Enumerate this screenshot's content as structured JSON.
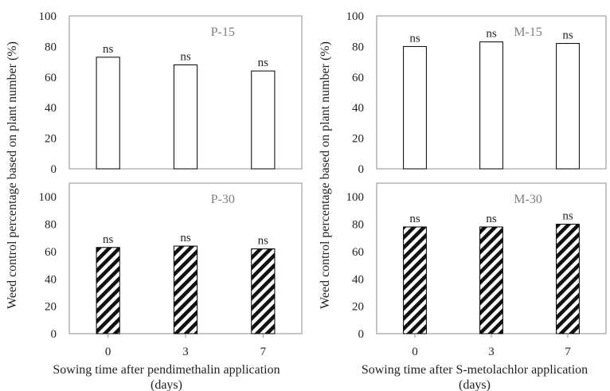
{
  "figure": {
    "ylabel": "Weed control percentage based on plant number (%)",
    "groups": [
      {
        "xlabel_line1": "Sowing time after pendimethalin application",
        "xlabel_line2": "(days)"
      },
      {
        "xlabel_line1": "Sowing time after S-metolachlor application",
        "xlabel_line2": "(days)"
      }
    ]
  },
  "chart_data": [
    {
      "type": "bar",
      "title": "P-15",
      "categories": [
        "0",
        "3",
        "7"
      ],
      "values": [
        73,
        68,
        64
      ],
      "labels": [
        "ns",
        "ns",
        "ns"
      ],
      "ylim": [
        0,
        100
      ],
      "yticks": [
        0,
        20,
        40,
        60,
        80,
        100
      ],
      "fill": "white",
      "ylabel": "Weed control percentage based on plant number (%)"
    },
    {
      "type": "bar",
      "title": "P-30",
      "categories": [
        "0",
        "3",
        "7"
      ],
      "values": [
        63,
        64,
        62
      ],
      "labels": [
        "ns",
        "ns",
        "ns"
      ],
      "ylim": [
        0,
        100
      ],
      "yticks": [
        0,
        20,
        40,
        60,
        80,
        100
      ],
      "fill": "diagonal-stripes",
      "xlabel": "Sowing time after pendimethalin application (days)"
    },
    {
      "type": "bar",
      "title": "M-15",
      "categories": [
        "0",
        "3",
        "7"
      ],
      "values": [
        80,
        83,
        82
      ],
      "labels": [
        "ns",
        "ns",
        "ns"
      ],
      "ylim": [
        0,
        100
      ],
      "yticks": [
        0,
        20,
        40,
        60,
        80,
        100
      ],
      "fill": "white",
      "ylabel": "Weed control percentage based on plant number (%)"
    },
    {
      "type": "bar",
      "title": "M-30",
      "categories": [
        "0",
        "3",
        "7"
      ],
      "values": [
        78,
        78,
        80
      ],
      "labels": [
        "ns",
        "ns",
        "ns"
      ],
      "ylim": [
        0,
        100
      ],
      "yticks": [
        0,
        20,
        40,
        60,
        80,
        100
      ],
      "fill": "diagonal-stripes",
      "xlabel": "Sowing time after S-metolachlor application (days)"
    }
  ]
}
